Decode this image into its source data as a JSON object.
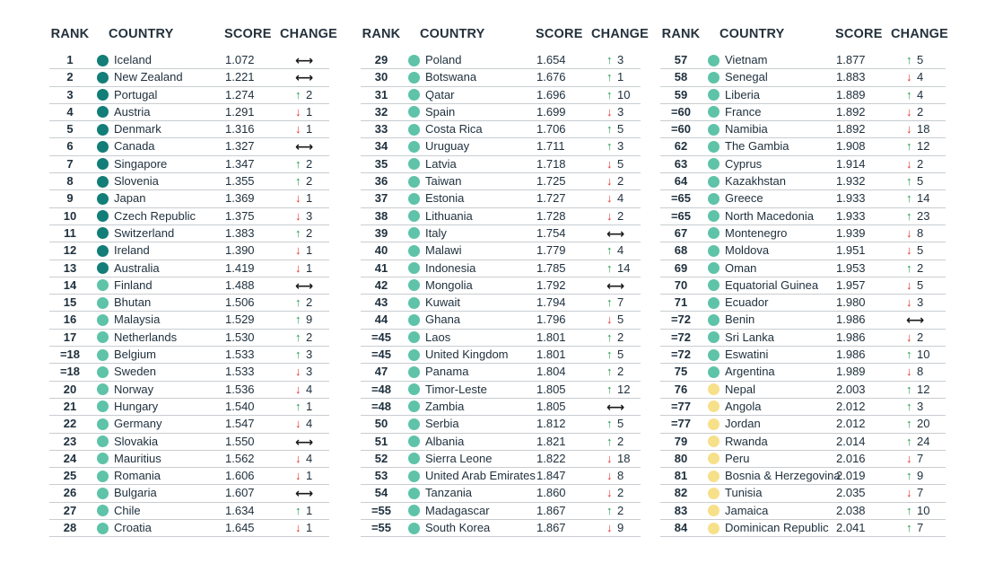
{
  "headers": {
    "rank": "RANK",
    "country": "COUNTRY",
    "score": "SCORE",
    "change": "CHANGE"
  },
  "colors": {
    "tier1": "#137d78",
    "tier2": "#5ec3a8",
    "tier3": "#f7e08a",
    "up": "#1f9a4c",
    "down": "#e0312c"
  },
  "icons": {
    "up": "↑",
    "down": "↓",
    "same": "⟷"
  },
  "columns": [
    [
      {
        "rank": "1",
        "country": "Iceland",
        "score": "1.072",
        "dir": "same",
        "change": "",
        "tier": 1
      },
      {
        "rank": "2",
        "country": "New Zealand",
        "score": "1.221",
        "dir": "same",
        "change": "",
        "tier": 1
      },
      {
        "rank": "3",
        "country": "Portugal",
        "score": "1.274",
        "dir": "up",
        "change": "2",
        "tier": 1
      },
      {
        "rank": "4",
        "country": "Austria",
        "score": "1.291",
        "dir": "down",
        "change": "1",
        "tier": 1
      },
      {
        "rank": "5",
        "country": "Denmark",
        "score": "1.316",
        "dir": "down",
        "change": "1",
        "tier": 1
      },
      {
        "rank": "6",
        "country": "Canada",
        "score": "1.327",
        "dir": "same",
        "change": "",
        "tier": 1
      },
      {
        "rank": "7",
        "country": "Singapore",
        "score": "1.347",
        "dir": "up",
        "change": "2",
        "tier": 1
      },
      {
        "rank": "8",
        "country": "Slovenia",
        "score": "1.355",
        "dir": "up",
        "change": "2",
        "tier": 1
      },
      {
        "rank": "9",
        "country": "Japan",
        "score": "1.369",
        "dir": "down",
        "change": "1",
        "tier": 1
      },
      {
        "rank": "10",
        "country": "Czech Republic",
        "score": "1.375",
        "dir": "down",
        "change": "3",
        "tier": 1
      },
      {
        "rank": "11",
        "country": "Switzerland",
        "score": "1.383",
        "dir": "up",
        "change": "2",
        "tier": 1
      },
      {
        "rank": "12",
        "country": "Ireland",
        "score": "1.390",
        "dir": "down",
        "change": "1",
        "tier": 1
      },
      {
        "rank": "13",
        "country": "Australia",
        "score": "1.419",
        "dir": "down",
        "change": "1",
        "tier": 1
      },
      {
        "rank": "14",
        "country": "Finland",
        "score": "1.488",
        "dir": "same",
        "change": "",
        "tier": 2
      },
      {
        "rank": "15",
        "country": "Bhutan",
        "score": "1.506",
        "dir": "up",
        "change": "2",
        "tier": 2
      },
      {
        "rank": "16",
        "country": "Malaysia",
        "score": "1.529",
        "dir": "up",
        "change": "9",
        "tier": 2
      },
      {
        "rank": "17",
        "country": "Netherlands",
        "score": "1.530",
        "dir": "up",
        "change": "2",
        "tier": 2
      },
      {
        "rank": "=18",
        "country": "Belgium",
        "score": "1.533",
        "dir": "up",
        "change": "3",
        "tier": 2
      },
      {
        "rank": "=18",
        "country": "Sweden",
        "score": "1.533",
        "dir": "down",
        "change": "3",
        "tier": 2
      },
      {
        "rank": "20",
        "country": "Norway",
        "score": "1.536",
        "dir": "down",
        "change": "4",
        "tier": 2
      },
      {
        "rank": "21",
        "country": "Hungary",
        "score": "1.540",
        "dir": "up",
        "change": "1",
        "tier": 2
      },
      {
        "rank": "22",
        "country": "Germany",
        "score": "1.547",
        "dir": "down",
        "change": "4",
        "tier": 2
      },
      {
        "rank": "23",
        "country": "Slovakia",
        "score": "1.550",
        "dir": "same",
        "change": "",
        "tier": 2
      },
      {
        "rank": "24",
        "country": "Mauritius",
        "score": "1.562",
        "dir": "down",
        "change": "4",
        "tier": 2
      },
      {
        "rank": "25",
        "country": "Romania",
        "score": "1.606",
        "dir": "down",
        "change": "1",
        "tier": 2
      },
      {
        "rank": "26",
        "country": "Bulgaria",
        "score": "1.607",
        "dir": "same",
        "change": "",
        "tier": 2
      },
      {
        "rank": "27",
        "country": "Chile",
        "score": "1.634",
        "dir": "up",
        "change": "1",
        "tier": 2
      },
      {
        "rank": "28",
        "country": "Croatia",
        "score": "1.645",
        "dir": "down",
        "change": "1",
        "tier": 2
      }
    ],
    [
      {
        "rank": "29",
        "country": "Poland",
        "score": "1.654",
        "dir": "up",
        "change": "3",
        "tier": 2
      },
      {
        "rank": "30",
        "country": "Botswana",
        "score": "1.676",
        "dir": "up",
        "change": "1",
        "tier": 2
      },
      {
        "rank": "31",
        "country": "Qatar",
        "score": "1.696",
        "dir": "up",
        "change": "10",
        "tier": 2
      },
      {
        "rank": "32",
        "country": "Spain",
        "score": "1.699",
        "dir": "down",
        "change": "3",
        "tier": 2
      },
      {
        "rank": "33",
        "country": "Costa Rica",
        "score": "1.706",
        "dir": "up",
        "change": "5",
        "tier": 2
      },
      {
        "rank": "34",
        "country": "Uruguay",
        "score": "1.711",
        "dir": "up",
        "change": "3",
        "tier": 2
      },
      {
        "rank": "35",
        "country": "Latvia",
        "score": "1.718",
        "dir": "down",
        "change": "5",
        "tier": 2
      },
      {
        "rank": "36",
        "country": "Taiwan",
        "score": "1.725",
        "dir": "down",
        "change": "2",
        "tier": 2
      },
      {
        "rank": "37",
        "country": "Estonia",
        "score": "1.727",
        "dir": "down",
        "change": "4",
        "tier": 2
      },
      {
        "rank": "38",
        "country": "Lithuania",
        "score": "1.728",
        "dir": "down",
        "change": "2",
        "tier": 2
      },
      {
        "rank": "39",
        "country": "Italy",
        "score": "1.754",
        "dir": "same",
        "change": "",
        "tier": 2
      },
      {
        "rank": "40",
        "country": "Malawi",
        "score": "1.779",
        "dir": "up",
        "change": "4",
        "tier": 2
      },
      {
        "rank": "41",
        "country": "Indonesia",
        "score": "1.785",
        "dir": "up",
        "change": "14",
        "tier": 2
      },
      {
        "rank": "42",
        "country": "Mongolia",
        "score": "1.792",
        "dir": "same",
        "change": "",
        "tier": 2
      },
      {
        "rank": "43",
        "country": "Kuwait",
        "score": "1.794",
        "dir": "up",
        "change": "7",
        "tier": 2
      },
      {
        "rank": "44",
        "country": "Ghana",
        "score": "1.796",
        "dir": "down",
        "change": "5",
        "tier": 2
      },
      {
        "rank": "=45",
        "country": "Laos",
        "score": "1.801",
        "dir": "up",
        "change": "2",
        "tier": 2
      },
      {
        "rank": "=45",
        "country": "United Kingdom",
        "score": "1.801",
        "dir": "up",
        "change": "5",
        "tier": 2
      },
      {
        "rank": "47",
        "country": "Panama",
        "score": "1.804",
        "dir": "up",
        "change": "2",
        "tier": 2
      },
      {
        "rank": "=48",
        "country": "Timor-Leste",
        "score": "1.805",
        "dir": "up",
        "change": "12",
        "tier": 2
      },
      {
        "rank": "=48",
        "country": "Zambia",
        "score": "1.805",
        "dir": "same",
        "change": "",
        "tier": 2
      },
      {
        "rank": "50",
        "country": "Serbia",
        "score": "1.812",
        "dir": "up",
        "change": "5",
        "tier": 2
      },
      {
        "rank": "51",
        "country": "Albania",
        "score": "1.821",
        "dir": "up",
        "change": "2",
        "tier": 2
      },
      {
        "rank": "52",
        "country": "Sierra Leone",
        "score": "1.822",
        "dir": "down",
        "change": "18",
        "tier": 2
      },
      {
        "rank": "53",
        "country": "United Arab Emirates",
        "score": "1.847",
        "dir": "down",
        "change": "8",
        "tier": 2
      },
      {
        "rank": "54",
        "country": "Tanzania",
        "score": "1.860",
        "dir": "down",
        "change": "2",
        "tier": 2
      },
      {
        "rank": "=55",
        "country": "Madagascar",
        "score": "1.867",
        "dir": "up",
        "change": "2",
        "tier": 2
      },
      {
        "rank": "=55",
        "country": "South Korea",
        "score": "1.867",
        "dir": "down",
        "change": "9",
        "tier": 2
      }
    ],
    [
      {
        "rank": "57",
        "country": "Vietnam",
        "score": "1.877",
        "dir": "up",
        "change": "5",
        "tier": 2
      },
      {
        "rank": "58",
        "country": "Senegal",
        "score": "1.883",
        "dir": "down",
        "change": "4",
        "tier": 2
      },
      {
        "rank": "59",
        "country": "Liberia",
        "score": "1.889",
        "dir": "up",
        "change": "4",
        "tier": 2
      },
      {
        "rank": "=60",
        "country": "France",
        "score": "1.892",
        "dir": "down",
        "change": "2",
        "tier": 2
      },
      {
        "rank": "=60",
        "country": "Namibia",
        "score": "1.892",
        "dir": "down",
        "change": "18",
        "tier": 2
      },
      {
        "rank": "62",
        "country": "The Gambia",
        "score": "1.908",
        "dir": "up",
        "change": "12",
        "tier": 2
      },
      {
        "rank": "63",
        "country": "Cyprus",
        "score": "1.914",
        "dir": "down",
        "change": "2",
        "tier": 2
      },
      {
        "rank": "64",
        "country": "Kazakhstan",
        "score": "1.932",
        "dir": "up",
        "change": "5",
        "tier": 2
      },
      {
        "rank": "=65",
        "country": "Greece",
        "score": "1.933",
        "dir": "up",
        "change": "14",
        "tier": 2
      },
      {
        "rank": "=65",
        "country": "North Macedonia",
        "score": "1.933",
        "dir": "up",
        "change": "23",
        "tier": 2
      },
      {
        "rank": "67",
        "country": "Montenegro",
        "score": "1.939",
        "dir": "down",
        "change": "8",
        "tier": 2
      },
      {
        "rank": "68",
        "country": "Moldova",
        "score": "1.951",
        "dir": "down",
        "change": "5",
        "tier": 2
      },
      {
        "rank": "69",
        "country": "Oman",
        "score": "1.953",
        "dir": "up",
        "change": "2",
        "tier": 2
      },
      {
        "rank": "70",
        "country": "Equatorial Guinea",
        "score": "1.957",
        "dir": "down",
        "change": "5",
        "tier": 2
      },
      {
        "rank": "71",
        "country": "Ecuador",
        "score": "1.980",
        "dir": "down",
        "change": "3",
        "tier": 2
      },
      {
        "rank": "=72",
        "country": "Benin",
        "score": "1.986",
        "dir": "same",
        "change": "",
        "tier": 2
      },
      {
        "rank": "=72",
        "country": "Sri Lanka",
        "score": "1.986",
        "dir": "down",
        "change": "2",
        "tier": 2
      },
      {
        "rank": "=72",
        "country": "Eswatini",
        "score": "1.986",
        "dir": "up",
        "change": "10",
        "tier": 2
      },
      {
        "rank": "75",
        "country": "Argentina",
        "score": "1.989",
        "dir": "down",
        "change": "8",
        "tier": 2
      },
      {
        "rank": "76",
        "country": "Nepal",
        "score": "2.003",
        "dir": "up",
        "change": "12",
        "tier": 3
      },
      {
        "rank": "=77",
        "country": "Angola",
        "score": "2.012",
        "dir": "up",
        "change": "3",
        "tier": 3
      },
      {
        "rank": "=77",
        "country": "Jordan",
        "score": "2.012",
        "dir": "up",
        "change": "20",
        "tier": 3
      },
      {
        "rank": "79",
        "country": "Rwanda",
        "score": "2.014",
        "dir": "up",
        "change": "24",
        "tier": 3
      },
      {
        "rank": "80",
        "country": "Peru",
        "score": "2.016",
        "dir": "down",
        "change": "7",
        "tier": 3
      },
      {
        "rank": "81",
        "country": "Bosnia & Herzegovina",
        "score": "2.019",
        "dir": "up",
        "change": "9",
        "tier": 3
      },
      {
        "rank": "82",
        "country": "Tunisia",
        "score": "2.035",
        "dir": "down",
        "change": "7",
        "tier": 3
      },
      {
        "rank": "83",
        "country": "Jamaica",
        "score": "2.038",
        "dir": "up",
        "change": "10",
        "tier": 3
      },
      {
        "rank": "84",
        "country": "Dominican Republic",
        "score": "2.041",
        "dir": "up",
        "change": "7",
        "tier": 3
      }
    ]
  ]
}
